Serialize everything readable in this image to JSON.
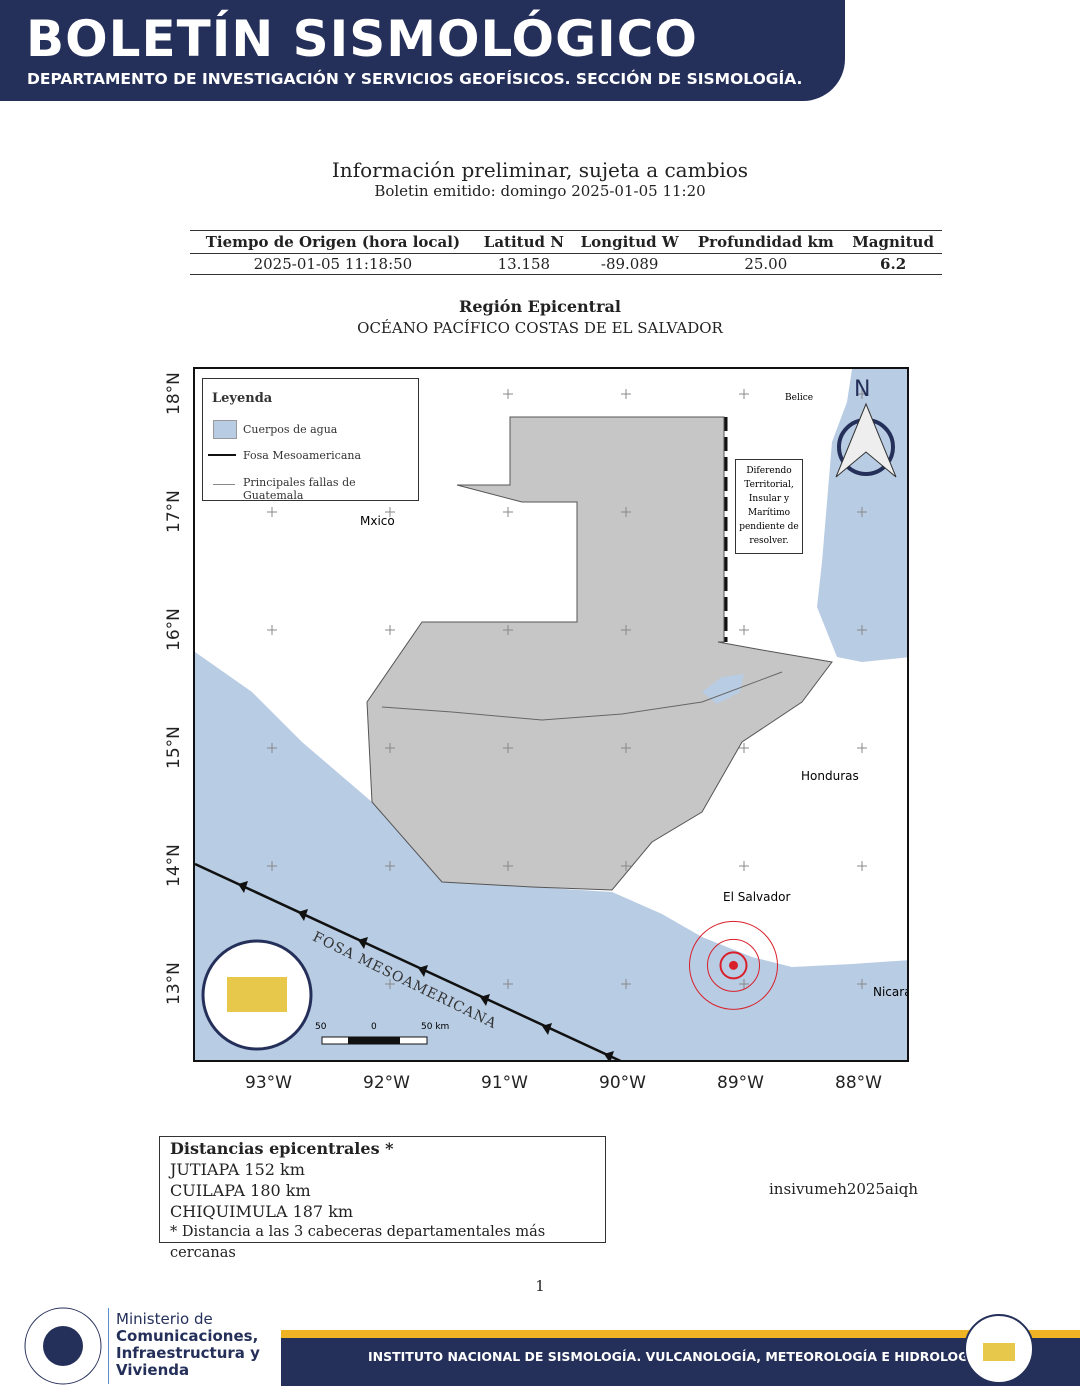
{
  "header": {
    "title": "BOLETÍN SISMOLÓGICO",
    "subtitle": "DEPARTAMENTO DE INVESTIGACIÓN Y SERVICIOS GEOFÍSICOS. SECCIÓN DE SISMOLOGÍA."
  },
  "notice": "Información preliminar, sujeta a cambios",
  "issued": "Boletin emitido:  domingo 2025-01-05 11:20",
  "table": {
    "headers": [
      "Tiempo de Origen (hora local)",
      "Latitud N",
      "Longitud W",
      "Profundidad km",
      "Magnitud"
    ],
    "row": [
      "2025-01-05 11:18:50",
      "13.158",
      "-89.089",
      "25.00",
      "6.2"
    ]
  },
  "region": {
    "label": "Región Epicentral",
    "value": "OCÉANO PACÍFICO COSTAS DE EL SALVADOR"
  },
  "map": {
    "legend": {
      "title": "Leyenda",
      "items": [
        "Cuerpos de agua",
        "Fosa Mesoamericana",
        "Principales fallas de Guatemala"
      ]
    },
    "labels": {
      "mexico": "Mxico",
      "belize": "Belice",
      "honduras": "Honduras",
      "el_salvador": "El Salvador",
      "nicaragua": "Nicara",
      "trench": "FOSA MESOAMERICANA",
      "north": "N"
    },
    "dispute": "Diferendo Territorial, Insular y Marítimo pendiente de resolver.",
    "scale": [
      "50",
      "0",
      "50 km"
    ],
    "logo": "INSIVUMEH",
    "lon_ticks": [
      "93°W",
      "92°W",
      "91°W",
      "90°W",
      "89°W",
      "88°W"
    ],
    "lat_ticks": [
      "18°N",
      "17°N",
      "16°N",
      "15°N",
      "14°N",
      "13°N"
    ],
    "epicenter": {
      "lat": 13.158,
      "lon": -89.089
    },
    "colors": {
      "water": "#b8cce4",
      "land": "#c8c8c8",
      "epicenter": "#d9202a"
    }
  },
  "distances": {
    "title": "Distancias epicentrales *",
    "items": [
      "JUTIAPA 152 km",
      "CUILAPA 180 km",
      "CHIQUIMULA 187 km"
    ],
    "note": "* Distancia a las 3 cabeceras departamentales más cercanas"
  },
  "event_id": "insivumeh2025aiqh",
  "page": "1",
  "footer": {
    "ministry": [
      "Ministerio de",
      "Comunicaciones,",
      "Infraestructura y",
      "Vivienda"
    ],
    "seal": "GOBIERNO DE LA REPÚBLICA GUATEMALA",
    "institute": "INSTITUTO NACIONAL DE SISMOLOGÍA. VULCANOLOGÍA, METEOROLOGÍA E HIDROLOGÍA",
    "logo": "INSIVUMEH"
  }
}
